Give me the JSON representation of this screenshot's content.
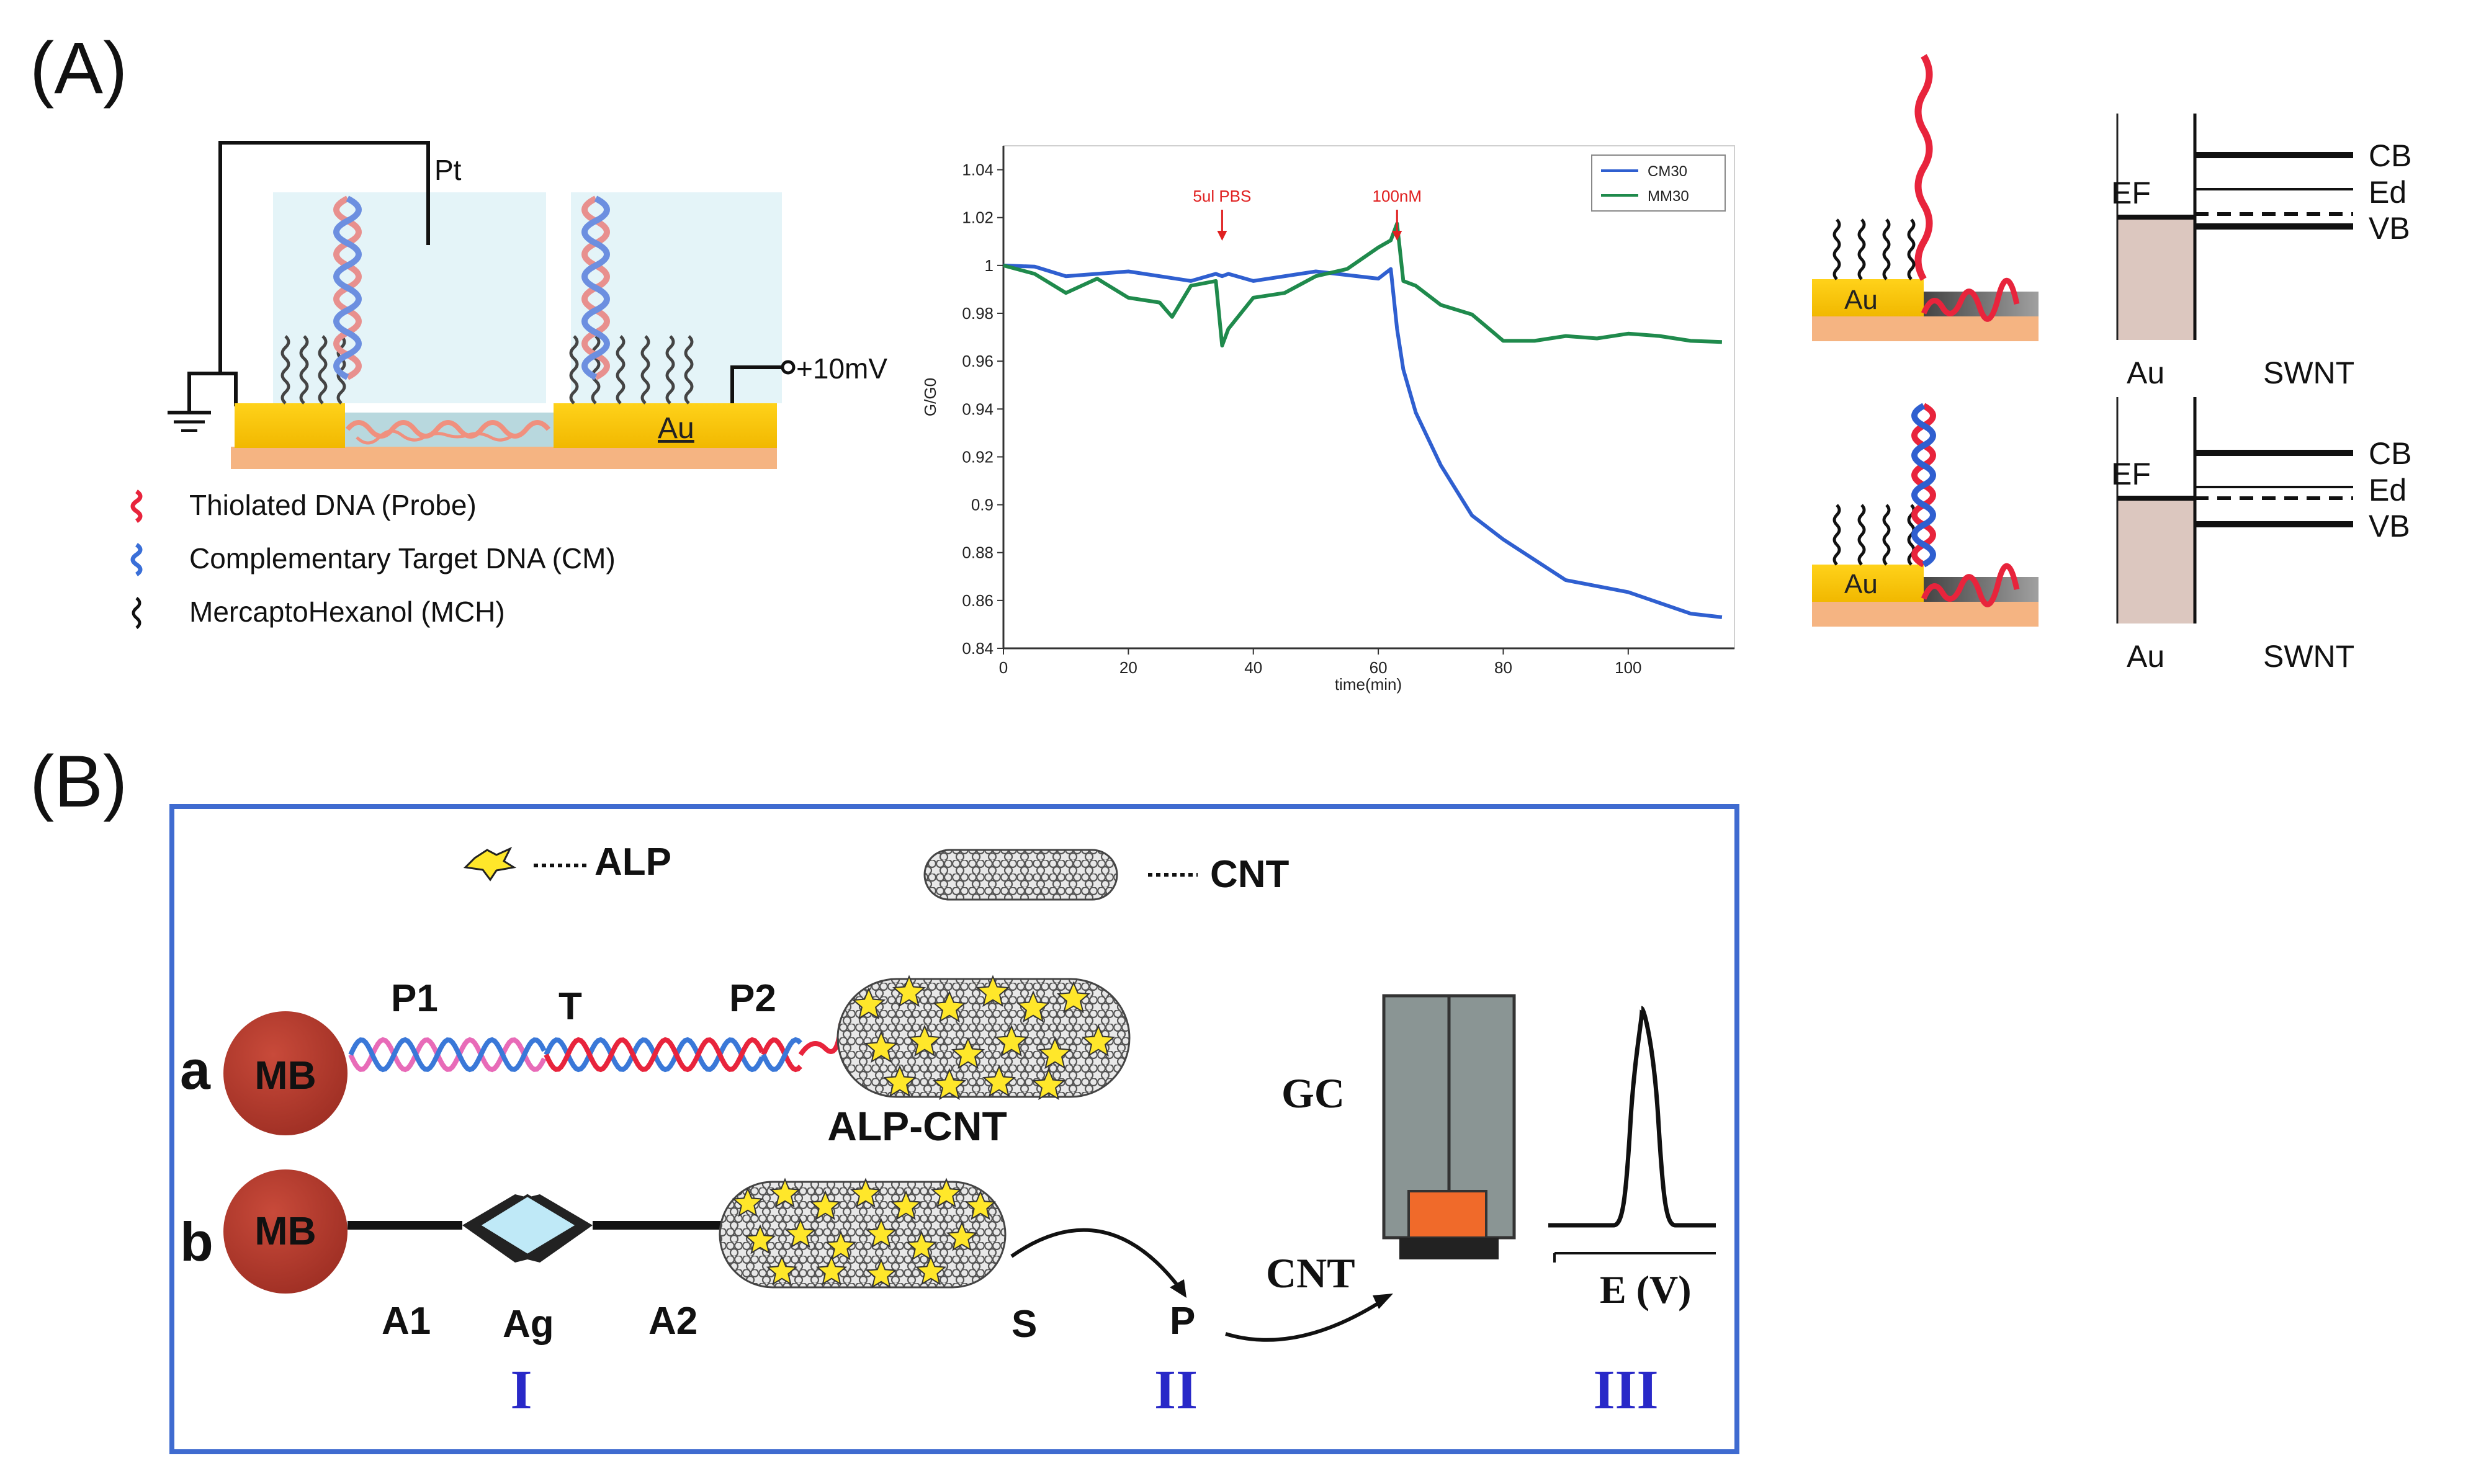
{
  "panel_a": {
    "label": "(A)",
    "device": {
      "pt_label": "Pt",
      "voltage_label": "+10mV",
      "au_label": "Au",
      "legend": [
        {
          "text": "Thiolated DNA (Probe)",
          "color": "#e8243c"
        },
        {
          "text": "Complementary Target DNA (CM)",
          "color": "#3a6fd8"
        },
        {
          "text": "MercaptoHexanol (MCH)",
          "color": "#111111"
        }
      ]
    },
    "chart_data": {
      "type": "line",
      "title": "",
      "xlabel": "time(min)",
      "ylabel": "G/G0",
      "xlim": [
        0,
        117
      ],
      "ylim": [
        0.84,
        1.05
      ],
      "x_ticks": [
        0,
        20,
        40,
        60,
        80,
        100
      ],
      "y_ticks": [
        0.84,
        0.86,
        0.88,
        0.9,
        0.92,
        0.94,
        0.96,
        0.98,
        1,
        1.02,
        1.04
      ],
      "annotations": [
        {
          "text": "5ul PBS",
          "x": 35
        },
        {
          "text": "100nM",
          "x": 63
        }
      ],
      "series": [
        {
          "name": "CM30",
          "color": "#2f5fd0",
          "x": [
            0,
            5,
            10,
            20,
            30,
            34,
            35,
            36,
            40,
            50,
            60,
            62,
            63,
            64,
            66,
            70,
            75,
            80,
            90,
            100,
            110,
            115
          ],
          "y": [
            1.0,
            0.998,
            0.997,
            0.996,
            0.995,
            0.995,
            0.997,
            0.995,
            0.995,
            0.996,
            0.996,
            0.997,
            0.975,
            0.955,
            0.94,
            0.915,
            0.897,
            0.884,
            0.87,
            0.862,
            0.856,
            0.853
          ]
        },
        {
          "name": "MM30",
          "color": "#1f8a4c",
          "x": [
            0,
            5,
            10,
            15,
            20,
            25,
            27,
            30,
            34,
            35,
            36,
            40,
            45,
            50,
            55,
            60,
            62,
            63,
            64,
            66,
            70,
            75,
            80,
            85,
            90,
            95,
            100,
            105,
            110,
            115
          ],
          "y": [
            1.0,
            0.995,
            0.99,
            0.993,
            0.988,
            0.983,
            0.98,
            0.99,
            0.995,
            0.965,
            0.975,
            0.985,
            0.99,
            0.994,
            1.0,
            1.006,
            1.012,
            1.016,
            0.995,
            0.99,
            0.985,
            0.978,
            0.97,
            0.967,
            0.972,
            0.968,
            0.973,
            0.969,
            0.97,
            0.968
          ]
        }
      ]
    },
    "band_diagrams": {
      "au_label": "Au",
      "swnt_label": "SWNT",
      "cb_label": "CB",
      "ed_label": "Ed",
      "vb_label": "VB",
      "ef_label": "EF"
    }
  },
  "panel_b": {
    "label": "(B)",
    "legend": {
      "alp": "ALP",
      "cnt": "CNT"
    },
    "row_a": {
      "letter": "a",
      "mb": "MB",
      "p1": "P1",
      "t": "T",
      "p2": "P2",
      "alp_cnt": "ALP-CNT"
    },
    "row_b": {
      "letter": "b",
      "mb": "MB",
      "a1": "A1",
      "ag": "Ag",
      "a2": "A2"
    },
    "s": "S",
    "p": "P",
    "gc": "GC",
    "cnt": "CNT",
    "ev": "E (V)",
    "stages": [
      "I",
      "II",
      "III"
    ]
  }
}
